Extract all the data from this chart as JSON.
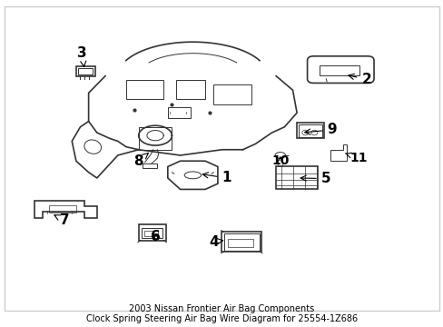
{
  "title": "2003 Nissan Frontier Air Bag Components\nClock Spring Steering Air Bag Wire Diagram for 25554-1Z686",
  "background_color": "#ffffff",
  "line_color": "#333333",
  "label_color": "#000000",
  "fig_width": 4.89,
  "fig_height": 3.6,
  "dpi": 100,
  "border_color": "#cccccc",
  "title_fontsize": 7,
  "label_fontsize": 11
}
